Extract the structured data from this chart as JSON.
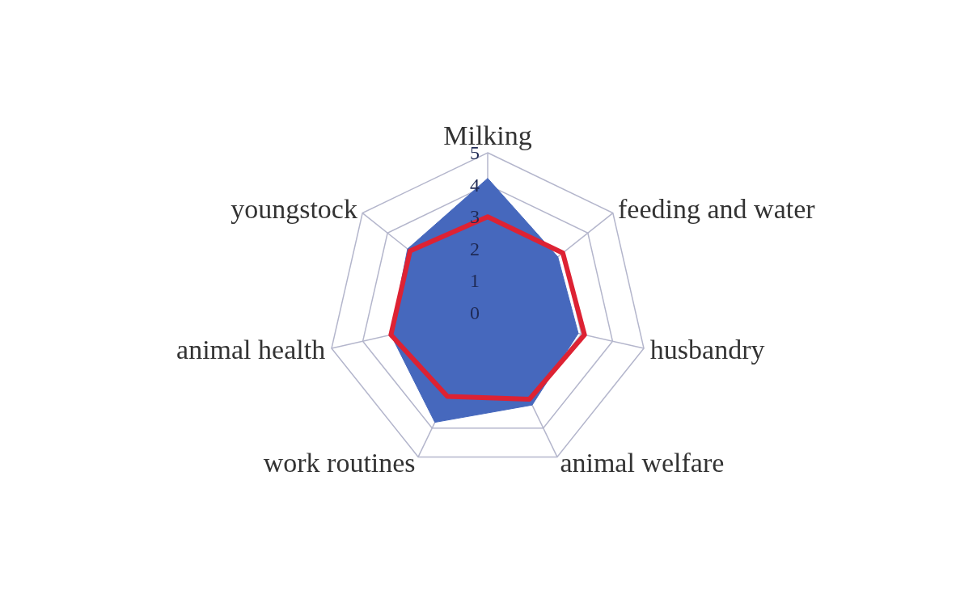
{
  "chart_data": {
    "type": "radar",
    "categories": [
      "Milking",
      "feeding and water",
      "husbandry",
      "animal welfare",
      "work routines",
      "animal health",
      "youngstock"
    ],
    "series": [
      {
        "color": "#4668bd",
        "values": [
          4.2,
          2.8,
          2.9,
          3.2,
          3.8,
          3.1,
          3.2
        ]
      },
      {
        "color": "#dd2233",
        "values": [
          3.0,
          3.0,
          3.1,
          3.0,
          2.9,
          3.1,
          3.1
        ]
      }
    ],
    "ylim": [
      0,
      5
    ],
    "yticks": [
      0,
      1,
      2,
      3,
      4,
      5
    ],
    "grid": true,
    "legend": false
  }
}
